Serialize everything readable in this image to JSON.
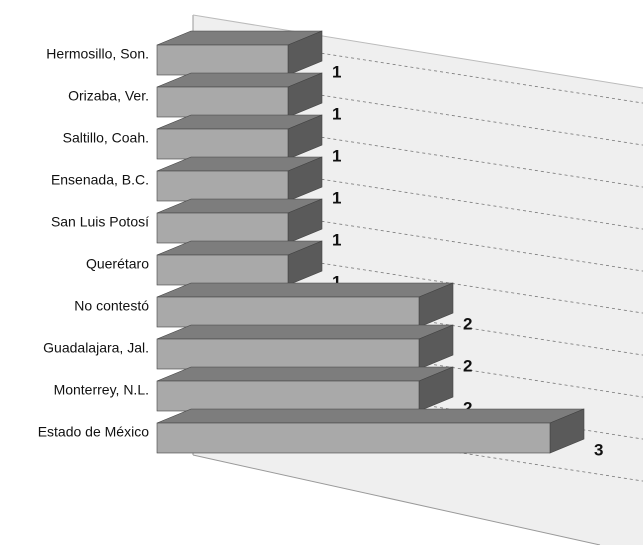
{
  "chart_data": {
    "type": "bar3d",
    "categories": [
      "Hermosillo, Son.",
      "Orizaba, Ver.",
      "Saltillo, Coah.",
      "Ensenada, B.C.",
      "San Luis Potosí",
      "Querétaro",
      "No contestó",
      "Guadalajara, Jal.",
      "Monterrey, N.L.",
      "Estado de México"
    ],
    "values": [
      1,
      1,
      1,
      1,
      1,
      1,
      2,
      2,
      2,
      3
    ],
    "color": "#a9a9a9"
  }
}
